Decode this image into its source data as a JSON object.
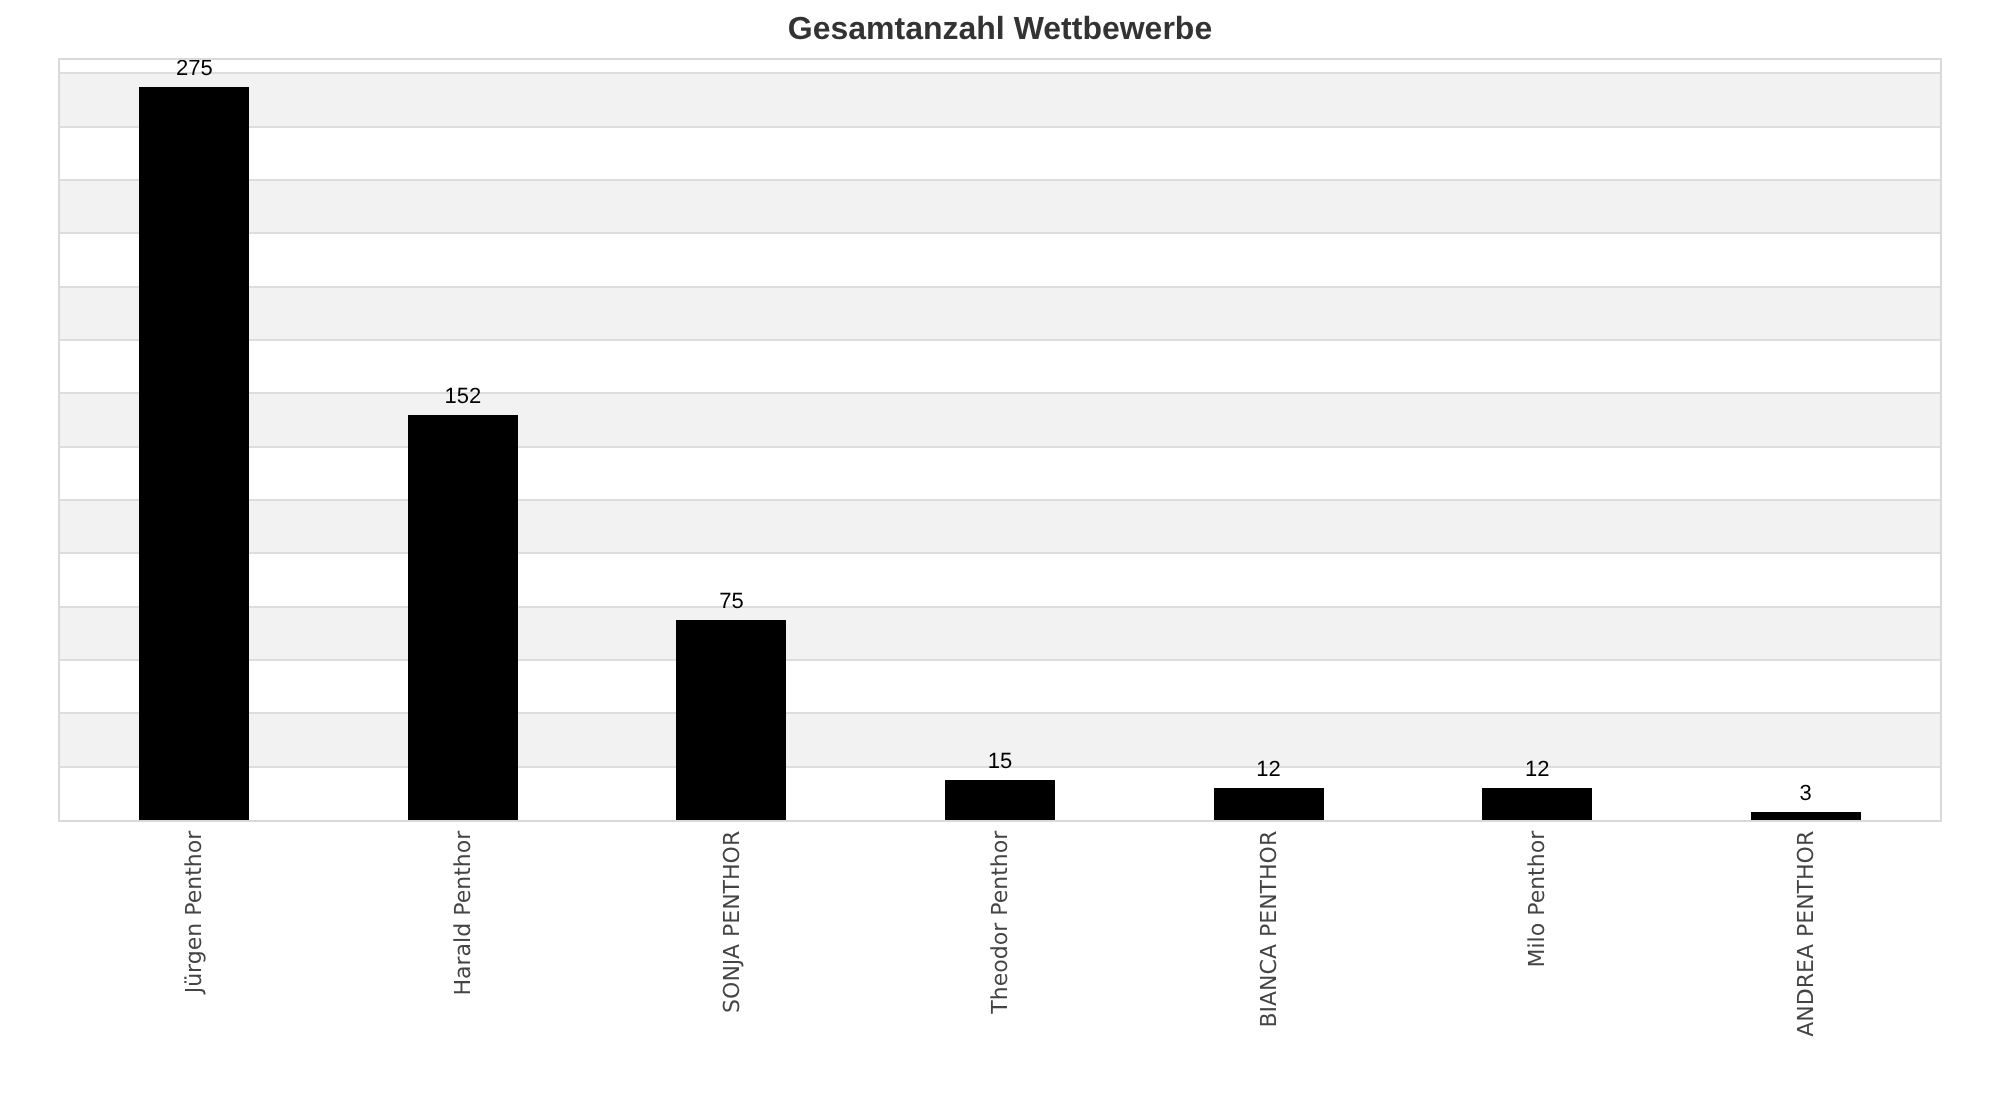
{
  "chart_data": {
    "type": "bar",
    "title": "Gesamtanzahl Wettbewerbe",
    "categories": [
      "Jürgen Penthor",
      "Harald Penthor",
      "SONJA PENTHOR",
      "Theodor Penthor",
      "BIANCA PENTHOR",
      "Milo Penthor",
      "ANDREA PENTHOR"
    ],
    "values": [
      275,
      152,
      75,
      15,
      12,
      12,
      3
    ],
    "color": "#000000",
    "ylim": [
      0,
      285
    ],
    "yticks": [
      {
        "value": 0,
        "label": null
      },
      {
        "value": 20,
        "label": null
      },
      {
        "value": 40,
        "label": null
      },
      {
        "value": 60,
        "label": null
      },
      {
        "value": 80,
        "label": null
      },
      {
        "value": 100,
        "label": null
      },
      {
        "value": 120,
        "label": null
      },
      {
        "value": 140,
        "label": null
      },
      {
        "value": 160,
        "label": null
      },
      {
        "value": 180,
        "label": null
      },
      {
        "value": 200,
        "label": null
      },
      {
        "value": 220,
        "label": null
      },
      {
        "value": 240,
        "label": null
      },
      {
        "value": 260,
        "label": null
      },
      {
        "value": 280,
        "label": null
      }
    ],
    "grid": "y",
    "tick_labels": "x",
    "data_labels": true
  }
}
